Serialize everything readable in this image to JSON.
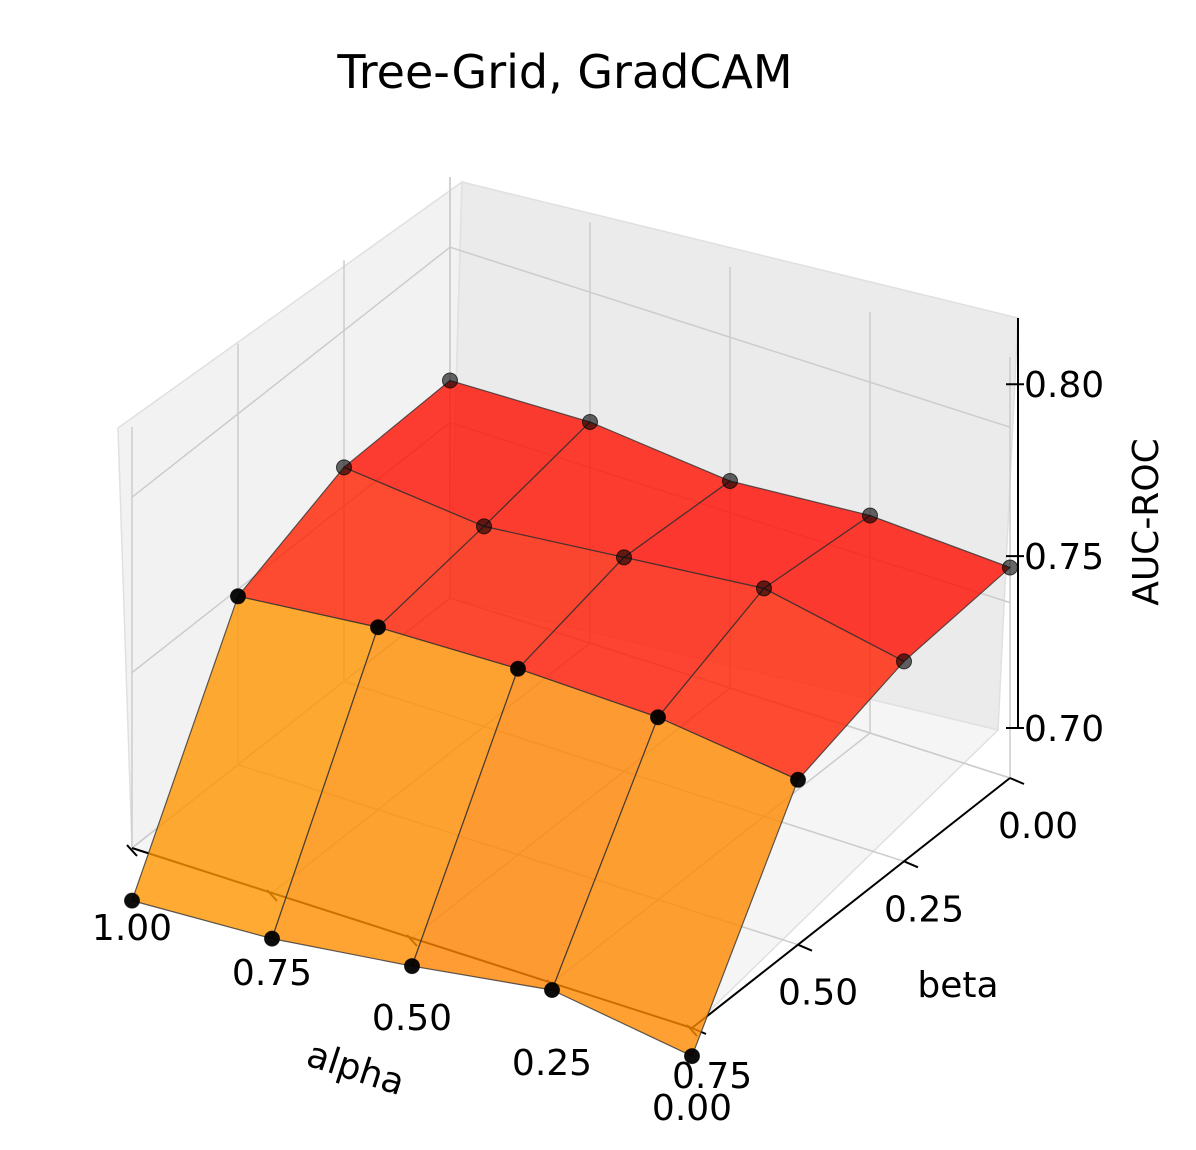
{
  "chart_data": {
    "type": "surface3d",
    "title": "Tree-Grid, GradCAM",
    "xlabel": "alpha",
    "ylabel": "beta",
    "zlabel": "AUC-ROC",
    "x_ticks": [
      "1.00",
      "0.75",
      "0.50",
      "0.25",
      "0.00"
    ],
    "y_ticks": [
      "0.00",
      "0.25",
      "0.50",
      "0.75"
    ],
    "z_ticks": [
      "0.70",
      "0.75",
      "0.80"
    ],
    "alpha": [
      1.0,
      0.75,
      0.5,
      0.25,
      0.0
    ],
    "beta": [
      0.75,
      0.5,
      0.25,
      0.0
    ],
    "zlim": [
      0.7,
      0.82
    ],
    "auc_roc": [
      [
        0.685,
        0.748,
        0.761,
        0.762
      ],
      [
        0.687,
        0.752,
        0.757,
        0.763
      ],
      [
        0.692,
        0.753,
        0.761,
        0.759
      ],
      [
        0.698,
        0.752,
        0.765,
        0.762
      ],
      [
        0.692,
        0.747,
        0.757,
        0.76
      ]
    ],
    "grid": true,
    "colormap": "autumn",
    "surface_alpha": 0.8,
    "marker_color": "#000000"
  }
}
